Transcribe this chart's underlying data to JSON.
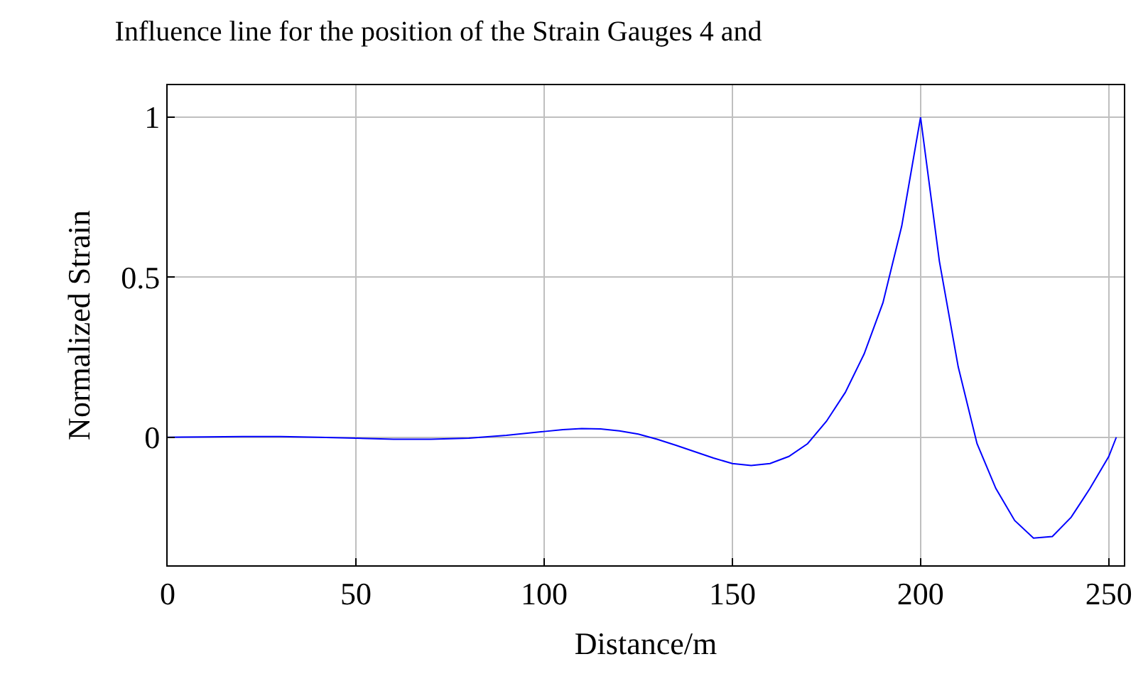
{
  "chart_data": {
    "type": "line",
    "title": "Influence line for the position of the Strain Gauges 4 and",
    "xlabel": "Distance/m",
    "ylabel": "Normalized Strain",
    "x": [
      0,
      10,
      20,
      30,
      40,
      50,
      60,
      70,
      80,
      90,
      100,
      105,
      110,
      115,
      120,
      125,
      130,
      135,
      140,
      145,
      150,
      155,
      160,
      165,
      170,
      175,
      180,
      185,
      190,
      195,
      200,
      205,
      210,
      215,
      220,
      225,
      230,
      235,
      240,
      245,
      250,
      252
    ],
    "series": [
      {
        "color": "#0000ff",
        "values": [
          0,
          0.001,
          0.002,
          0.002,
          0,
          -0.003,
          -0.006,
          -0.006,
          -0.003,
          0.006,
          0.018,
          0.024,
          0.027,
          0.026,
          0.02,
          0.01,
          -0.006,
          -0.025,
          -0.045,
          -0.065,
          -0.082,
          -0.088,
          -0.082,
          -0.06,
          -0.02,
          0.05,
          0.14,
          0.26,
          0.42,
          0.66,
          1.0,
          0.55,
          0.22,
          -0.02,
          -0.16,
          -0.26,
          -0.315,
          -0.31,
          -0.25,
          -0.16,
          -0.06,
          0
        ]
      }
    ],
    "xlim": [
      0,
      254
    ],
    "ylim": [
      -0.4,
      1.1
    ],
    "xticks": [
      0,
      50,
      100,
      150,
      200,
      250
    ],
    "yticks": [
      0,
      0.5,
      1
    ],
    "grid": true,
    "legend": false,
    "marker": "none",
    "line_style": "solid"
  }
}
